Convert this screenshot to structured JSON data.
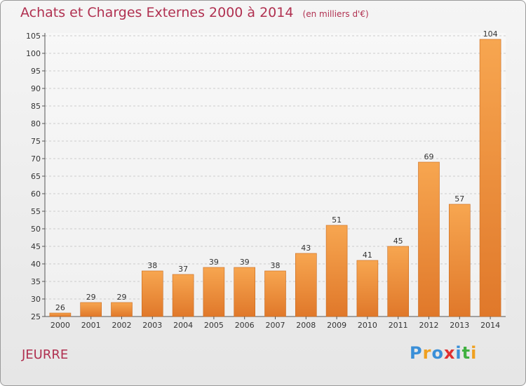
{
  "header": {
    "title": "Achats et Charges Externes 2000 à 2014",
    "subtitle": "(en milliers d'€)"
  },
  "commune": "JEURRE",
  "logo": {
    "text": "Proxiti",
    "letters": [
      {
        "char": "P",
        "color": "#3a8fd8"
      },
      {
        "char": "r",
        "color": "#f0a020"
      },
      {
        "char": "o",
        "color": "#3a8fd8"
      },
      {
        "char": "x",
        "color": "#e03030"
      },
      {
        "char": "i",
        "color": "#3a8fd8"
      },
      {
        "char": "t",
        "color": "#40b040"
      },
      {
        "char": "i",
        "color": "#f0a020"
      }
    ]
  },
  "chart_data": {
    "type": "bar",
    "title": "Achats et Charges Externes 2000 à 2014",
    "subtitle": "(en milliers d'€)",
    "categories": [
      "2000",
      "2001",
      "2002",
      "2003",
      "2004",
      "2005",
      "2006",
      "2007",
      "2008",
      "2009",
      "2010",
      "2011",
      "2012",
      "2013",
      "2014"
    ],
    "values": [
      26,
      29,
      29,
      38,
      37,
      39,
      39,
      38,
      43,
      51,
      41,
      45,
      69,
      57,
      104
    ],
    "ylim": [
      25,
      105
    ],
    "yticks": [
      25,
      30,
      35,
      40,
      45,
      50,
      55,
      60,
      65,
      70,
      75,
      80,
      85,
      90,
      95,
      100,
      105
    ],
    "grid": "horizontal dashed",
    "colors": {
      "bar_light": "#f7a650",
      "bar_dark": "#e0782a",
      "bar_edge": "#c86a1e",
      "grid": "#cccccc",
      "axis": "#555555",
      "text": "#333333"
    }
  }
}
